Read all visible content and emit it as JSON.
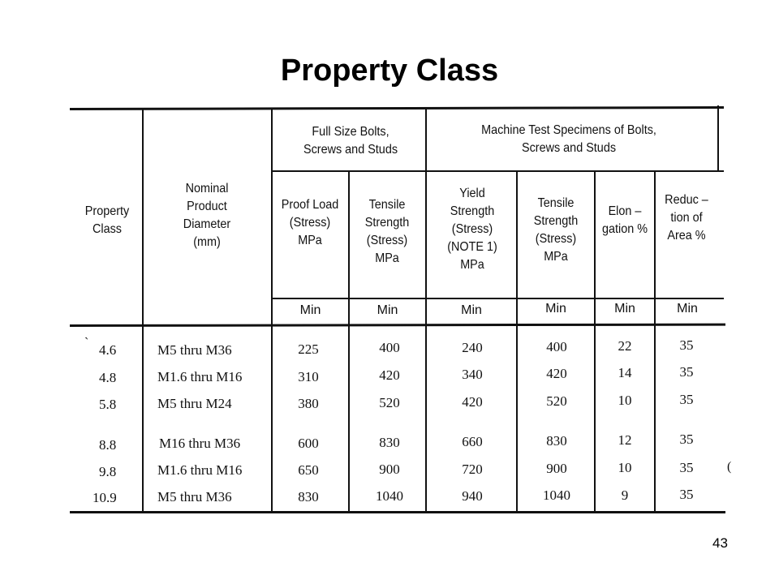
{
  "slide": {
    "title": "Property Class",
    "page_number": "43"
  },
  "table": {
    "group_headers": {
      "full_size": "Full Size Bolts, Screws and Studs",
      "machine": "Machine Test Specimens of Bolts, Screws and Studs"
    },
    "columns": [
      {
        "header": "Property Class",
        "sub": ""
      },
      {
        "header": "Nominal Product Diameter (mm)",
        "sub": ""
      },
      {
        "header": "Proof Load (Stress) MPa",
        "sub": "Min"
      },
      {
        "header": "Tensile Strength (Stress) MPa",
        "sub": "Min"
      },
      {
        "header": "Yield Strength (Stress) (NOTE 1) MPa",
        "sub": "Min"
      },
      {
        "header": "Tensile Strength (Stress) MPa",
        "sub": "Min"
      },
      {
        "header": "Elon – gation %",
        "sub": "Min"
      },
      {
        "header": "Reduc – tion of Area %",
        "sub": "Min"
      }
    ],
    "rows": [
      [
        "4.6",
        "M5 thru M36",
        "225",
        "400",
        "240",
        "400",
        "22",
        "35"
      ],
      [
        "4.8",
        "M1.6 thru M16",
        "310",
        "420",
        "340",
        "420",
        "14",
        "35"
      ],
      [
        "5.8",
        "M5 thru M24",
        "380",
        "520",
        "420",
        "520",
        "10",
        "35"
      ],
      [
        "8.8",
        "M16 thru M36",
        "600",
        "830",
        "660",
        "830",
        "12",
        "35"
      ],
      [
        "9.8",
        "M1.6 thru M16",
        "650",
        "900",
        "720",
        "900",
        "10",
        "35"
      ],
      [
        "10.9",
        "M5 thru M36",
        "830",
        "1040",
        "940",
        "1040",
        "9",
        "35"
      ]
    ],
    "stray_marks": [
      "`",
      "("
    ]
  }
}
